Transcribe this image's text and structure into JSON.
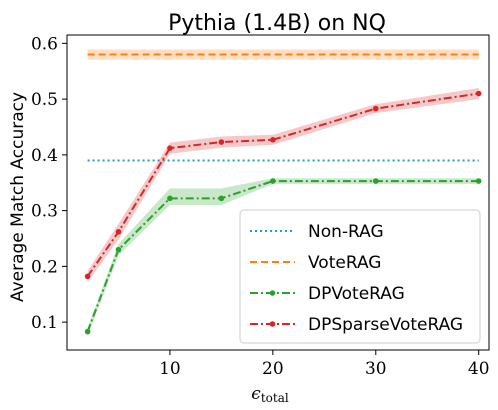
{
  "chart_data": {
    "type": "line",
    "title": "Pythia (1.4B) on NQ",
    "xlabel_symbol": "ϵ",
    "xlabel_subscript": "total",
    "ylabel": "Average Match Accuracy",
    "xlim": [
      0,
      41
    ],
    "ylim": [
      0.05,
      0.615
    ],
    "xticks": [
      10,
      20,
      30,
      40
    ],
    "yticks": [
      0.1,
      0.2,
      0.3,
      0.4,
      0.5,
      0.6
    ],
    "ytick_labels": [
      "0.1",
      "0.2",
      "0.3",
      "0.4",
      "0.5",
      "0.6"
    ],
    "grid": false,
    "legend_position": "lower-right",
    "series": [
      {
        "name": "Non-RAG",
        "style": "dotted",
        "color": "#1f9fbf",
        "x": [
          2,
          40
        ],
        "y": [
          0.39,
          0.39
        ],
        "markers": false
      },
      {
        "name": "VoteRAG",
        "style": "dashed",
        "color": "#ff7f0e",
        "x": [
          2,
          40
        ],
        "y": [
          0.58,
          0.58
        ],
        "band": [
          [
            0.571,
            0.589
          ],
          [
            0.571,
            0.589
          ]
        ],
        "markers": false
      },
      {
        "name": "DPVoteRAG",
        "style": "dashdot",
        "color": "#2ca02c",
        "x": [
          2,
          5,
          10,
          15,
          20,
          30,
          40
        ],
        "y": [
          0.083,
          0.23,
          0.322,
          0.322,
          0.353,
          0.353,
          0.353
        ],
        "band": [
          [
            0.075,
            0.09
          ],
          [
            0.22,
            0.24
          ],
          [
            0.31,
            0.34
          ],
          [
            0.31,
            0.34
          ],
          [
            0.348,
            0.358
          ],
          [
            0.348,
            0.358
          ],
          [
            0.348,
            0.358
          ]
        ],
        "markers": true
      },
      {
        "name": "DPSparseVoteRAG",
        "style": "dashdot",
        "color": "#d62728",
        "x": [
          2,
          5,
          10,
          15,
          20,
          30,
          40
        ],
        "y": [
          0.182,
          0.262,
          0.412,
          0.423,
          0.427,
          0.483,
          0.51
        ],
        "band": [
          [
            0.172,
            0.192
          ],
          [
            0.248,
            0.276
          ],
          [
            0.402,
            0.422
          ],
          [
            0.413,
            0.433
          ],
          [
            0.418,
            0.436
          ],
          [
            0.475,
            0.491
          ],
          [
            0.5,
            0.52
          ]
        ],
        "markers": true
      }
    ]
  }
}
